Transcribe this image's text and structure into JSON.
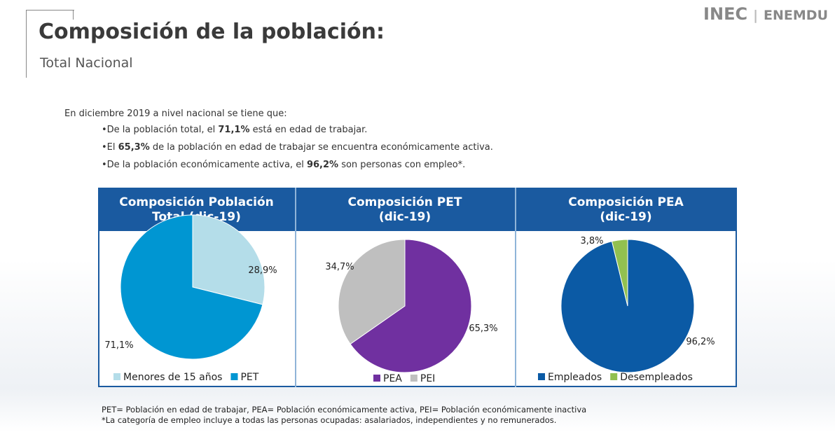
{
  "logo": {
    "brand": "INEC",
    "survey": "ENEMDU"
  },
  "header": {
    "title": "Composición de la población:",
    "subtitle": "Total Nacional"
  },
  "intro": "En diciembre 2019 a nivel nacional se tiene que:",
  "bullets": [
    {
      "pre": "•De la población total, el ",
      "bold": "71,1%",
      "post": " está en edad de trabajar."
    },
    {
      "pre": "•El ",
      "bold": "65,3%",
      "post": " de la población en edad de trabajar se encuentra económicamente activa."
    },
    {
      "pre": "•De la población económicamente activa, el ",
      "bold": "96,2%",
      "post": " son personas con empleo*."
    }
  ],
  "chart_data": [
    {
      "type": "pie",
      "title": "Composición Población Total (dic-19)",
      "categories": [
        "Menores de 15 años",
        "PET"
      ],
      "values": [
        28.9,
        71.1
      ],
      "value_labels": [
        "28,9%",
        "71,1%"
      ],
      "colors": [
        "#b4dde9",
        "#0096d2"
      ]
    },
    {
      "type": "pie",
      "title": "Composición PET (dic-19)",
      "categories": [
        "PEA",
        "PEI"
      ],
      "values": [
        65.3,
        34.7
      ],
      "value_labels": [
        "65,3%",
        "34,7%"
      ],
      "colors": [
        "#7030a0",
        "#bfbfbf"
      ]
    },
    {
      "type": "pie",
      "title": "Composición PEA (dic-19)",
      "categories": [
        "Empleados",
        "Desempleados"
      ],
      "values": [
        96.2,
        3.8
      ],
      "value_labels": [
        "96,2%",
        "3,8%"
      ],
      "colors": [
        "#0b5aa5",
        "#92c050"
      ]
    }
  ],
  "footnotes": [
    "PET= Población en edad de trabajar, PEA= Población económicamente activa, PEI= Población económicamente inactiva",
    "*La categoría de empleo incluye a todas las personas ocupadas: asalariados, independientes y no remunerados."
  ]
}
